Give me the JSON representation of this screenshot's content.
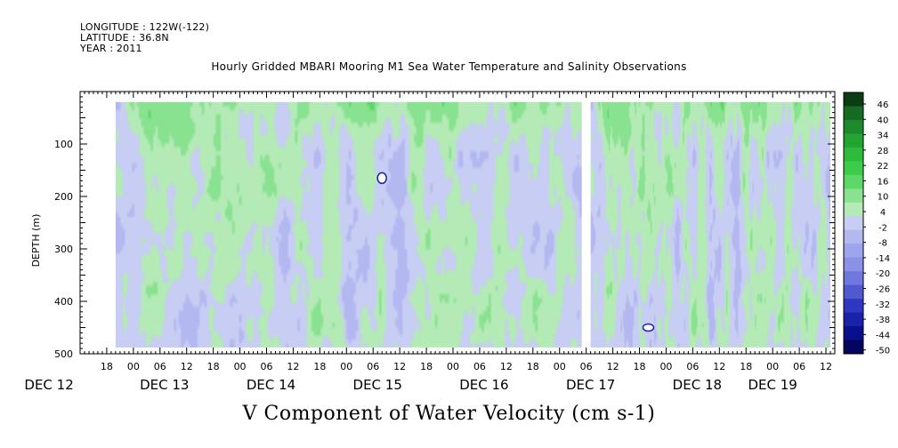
{
  "header": {
    "longitude": "LONGITUDE : 122W(-122)",
    "latitude": "LATITUDE : 36.8N",
    "year": "YEAR : 2011"
  },
  "chart_data": {
    "type": "heatmap",
    "title": "Hourly Gridded MBARI Mooring M1 Sea Water Temperature and Salinity Observations",
    "xlabel": "V Component of Water Velocity (cm s-1)",
    "ylabel": "DEPTH (m)",
    "ylim": [
      500,
      0
    ],
    "y_ticks": [
      100,
      200,
      300,
      400,
      500
    ],
    "x_range_hours": [
      "DEC 12 12:00",
      "DEC 19 14:00"
    ],
    "x_hour_labels": [
      "18",
      "00",
      "06",
      "12",
      "18",
      "00",
      "06",
      "12",
      "18",
      "00",
      "06",
      "12",
      "18",
      "00",
      "06",
      "12",
      "18",
      "00",
      "06",
      "12",
      "18",
      "00",
      "06",
      "12",
      "18",
      "00",
      "06",
      "12"
    ],
    "x_day_labels": [
      "DEC 12",
      "DEC 13",
      "DEC 14",
      "DEC 15",
      "DEC 16",
      "DEC 17",
      "DEC 18",
      "DEC 19"
    ],
    "data_extent": {
      "depth_range": [
        20,
        488
      ],
      "start": "DEC 12 20:00",
      "end": "DEC 19 13:00",
      "gap": [
        "DEC 17 05:00",
        "DEC 17 07:00"
      ]
    },
    "colorbar": {
      "labels": [
        "46",
        "40",
        "34",
        "28",
        "22",
        "16",
        "10",
        "4",
        "-2",
        "-8",
        "-14",
        "-20",
        "-26",
        "-32",
        "-38",
        "-44",
        "-50"
      ],
      "min": -50,
      "max": 50,
      "colors_top_to_bottom": [
        "#0b3d12",
        "#166b23",
        "#1e8a2e",
        "#23a534",
        "#2dbb3d",
        "#3ccc4a",
        "#5cd868",
        "#88e28f",
        "#b3eab6",
        "#c8cdf3",
        "#b3b8f0",
        "#9fa5ec",
        "#8a91e6",
        "#7077de",
        "#5058d2",
        "#3038c2",
        "#1a22a8",
        "#0a108c",
        "#03055e"
      ]
    },
    "features": [
      {
        "type": "missing",
        "depth": 165,
        "time": "DEC 15 08:00"
      },
      {
        "type": "missing",
        "depth": 450,
        "time": "DEC 17 20:00"
      }
    ]
  }
}
